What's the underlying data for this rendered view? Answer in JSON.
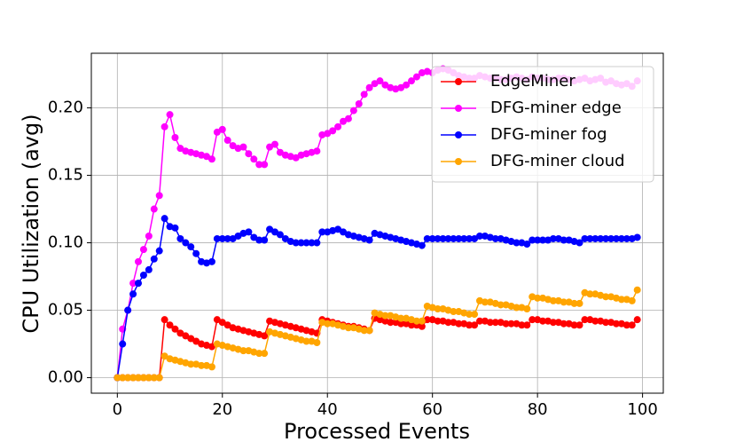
{
  "chart_data": {
    "type": "line",
    "xlabel": "Processed Events",
    "ylabel": "CPU Utilization (avg)",
    "x": [
      0,
      1,
      2,
      3,
      4,
      5,
      6,
      7,
      8,
      9,
      10,
      11,
      12,
      13,
      14,
      15,
      16,
      17,
      18,
      19,
      20,
      21,
      22,
      23,
      24,
      25,
      26,
      27,
      28,
      29,
      30,
      31,
      32,
      33,
      34,
      35,
      36,
      37,
      38,
      39,
      40,
      41,
      42,
      43,
      44,
      45,
      46,
      47,
      48,
      49,
      50,
      51,
      52,
      53,
      54,
      55,
      56,
      57,
      58,
      59,
      60,
      61,
      62,
      63,
      64,
      65,
      66,
      67,
      68,
      69,
      70,
      71,
      72,
      73,
      74,
      75,
      76,
      77,
      78,
      79,
      80,
      81,
      82,
      83,
      84,
      85,
      86,
      87,
      88,
      89,
      90,
      91,
      92,
      93,
      94,
      95,
      96,
      97,
      98,
      99
    ],
    "series": [
      {
        "name": "EdgeMiner",
        "color": "#ff0000",
        "values": [
          0,
          0,
          0,
          0,
          0,
          0,
          0,
          0,
          0,
          0.043,
          0.039,
          0.036,
          0.033,
          0.031,
          0.029,
          0.027,
          0.025,
          0.024,
          0.023,
          0.043,
          0.041,
          0.039,
          0.037,
          0.036,
          0.035,
          0.034,
          0.033,
          0.032,
          0.031,
          0.042,
          0.041,
          0.04,
          0.039,
          0.038,
          0.037,
          0.036,
          0.035,
          0.034,
          0.033,
          0.043,
          0.042,
          0.041,
          0.04,
          0.039,
          0.038,
          0.038,
          0.037,
          0.036,
          0.035,
          0.044,
          0.043,
          0.042,
          0.041,
          0.041,
          0.04,
          0.04,
          0.039,
          0.039,
          0.038,
          0.043,
          0.043,
          0.042,
          0.042,
          0.041,
          0.041,
          0.04,
          0.04,
          0.039,
          0.039,
          0.042,
          0.042,
          0.041,
          0.041,
          0.041,
          0.04,
          0.04,
          0.04,
          0.039,
          0.039,
          0.043,
          0.043,
          0.042,
          0.042,
          0.041,
          0.041,
          0.04,
          0.04,
          0.039,
          0.039,
          0.043,
          0.043,
          0.042,
          0.042,
          0.041,
          0.041,
          0.04,
          0.04,
          0.039,
          0.039,
          0.043
        ]
      },
      {
        "name": "DFG-miner edge",
        "color": "#ff00ff",
        "values": [
          0,
          0.036,
          0.05,
          0.07,
          0.086,
          0.095,
          0.105,
          0.125,
          0.135,
          0.186,
          0.195,
          0.178,
          0.17,
          0.168,
          0.167,
          0.166,
          0.165,
          0.164,
          0.162,
          0.182,
          0.184,
          0.176,
          0.172,
          0.17,
          0.171,
          0.166,
          0.162,
          0.158,
          0.158,
          0.171,
          0.173,
          0.167,
          0.165,
          0.164,
          0.163,
          0.165,
          0.166,
          0.167,
          0.168,
          0.18,
          0.181,
          0.183,
          0.186,
          0.19,
          0.192,
          0.198,
          0.203,
          0.21,
          0.215,
          0.218,
          0.22,
          0.217,
          0.215,
          0.214,
          0.215,
          0.217,
          0.22,
          0.223,
          0.226,
          0.227,
          0.226,
          0.228,
          0.229,
          0.228,
          0.226,
          0.224,
          0.223,
          0.222,
          0.222,
          0.224,
          0.223,
          0.222,
          0.222,
          0.221,
          0.221,
          0.222,
          0.223,
          0.222,
          0.221,
          0.223,
          0.222,
          0.222,
          0.221,
          0.221,
          0.222,
          0.222,
          0.221,
          0.22,
          0.221,
          0.222,
          0.22,
          0.221,
          0.222,
          0.219,
          0.22,
          0.218,
          0.217,
          0.218,
          0.216,
          0.22
        ]
      },
      {
        "name": "DFG-miner fog",
        "color": "#0000ff",
        "values": [
          0,
          0.025,
          0.05,
          0.062,
          0.07,
          0.076,
          0.08,
          0.088,
          0.094,
          0.118,
          0.112,
          0.111,
          0.103,
          0.1,
          0.097,
          0.092,
          0.086,
          0.085,
          0.086,
          0.103,
          0.103,
          0.103,
          0.103,
          0.105,
          0.107,
          0.108,
          0.104,
          0.102,
          0.102,
          0.11,
          0.108,
          0.106,
          0.103,
          0.101,
          0.1,
          0.1,
          0.1,
          0.1,
          0.1,
          0.108,
          0.108,
          0.109,
          0.11,
          0.108,
          0.106,
          0.105,
          0.104,
          0.103,
          0.102,
          0.107,
          0.106,
          0.105,
          0.104,
          0.103,
          0.102,
          0.101,
          0.1,
          0.099,
          0.098,
          0.103,
          0.103,
          0.103,
          0.103,
          0.103,
          0.103,
          0.103,
          0.103,
          0.103,
          0.103,
          0.105,
          0.105,
          0.104,
          0.103,
          0.103,
          0.102,
          0.101,
          0.1,
          0.1,
          0.099,
          0.102,
          0.102,
          0.102,
          0.102,
          0.103,
          0.103,
          0.102,
          0.102,
          0.101,
          0.1,
          0.103,
          0.103,
          0.103,
          0.103,
          0.103,
          0.103,
          0.103,
          0.103,
          0.103,
          0.103,
          0.104
        ]
      },
      {
        "name": "DFG-miner cloud",
        "color": "#ffa500",
        "values": [
          0,
          0,
          0,
          0,
          0,
          0,
          0,
          0,
          0,
          0.016,
          0.014,
          0.013,
          0.012,
          0.011,
          0.01,
          0.01,
          0.009,
          0.009,
          0.008,
          0.025,
          0.024,
          0.023,
          0.022,
          0.021,
          0.02,
          0.02,
          0.019,
          0.018,
          0.018,
          0.034,
          0.033,
          0.032,
          0.031,
          0.03,
          0.029,
          0.028,
          0.027,
          0.027,
          0.026,
          0.041,
          0.04,
          0.04,
          0.039,
          0.038,
          0.037,
          0.037,
          0.036,
          0.035,
          0.035,
          0.048,
          0.047,
          0.046,
          0.046,
          0.045,
          0.044,
          0.044,
          0.043,
          0.042,
          0.042,
          0.053,
          0.052,
          0.051,
          0.051,
          0.05,
          0.049,
          0.049,
          0.048,
          0.047,
          0.047,
          0.057,
          0.056,
          0.056,
          0.055,
          0.054,
          0.054,
          0.053,
          0.052,
          0.052,
          0.051,
          0.06,
          0.059,
          0.059,
          0.058,
          0.057,
          0.057,
          0.056,
          0.056,
          0.055,
          0.055,
          0.063,
          0.062,
          0.062,
          0.061,
          0.06,
          0.06,
          0.059,
          0.058,
          0.058,
          0.057,
          0.065
        ]
      }
    ],
    "xlim": [
      -4.95,
      103.95
    ],
    "xticks": [
      0,
      20,
      40,
      60,
      80,
      100
    ],
    "ylim": [
      -0.0115,
      0.2405
    ],
    "yticks": [
      {
        "value": 0,
        "label": "0.00"
      },
      {
        "value": 0.05,
        "label": "0.05"
      },
      {
        "value": 0.1,
        "label": "0.10"
      },
      {
        "value": 0.15,
        "label": "0.15"
      },
      {
        "value": 0.2,
        "label": "0.20"
      }
    ],
    "grid": true,
    "legend": "upper right"
  }
}
